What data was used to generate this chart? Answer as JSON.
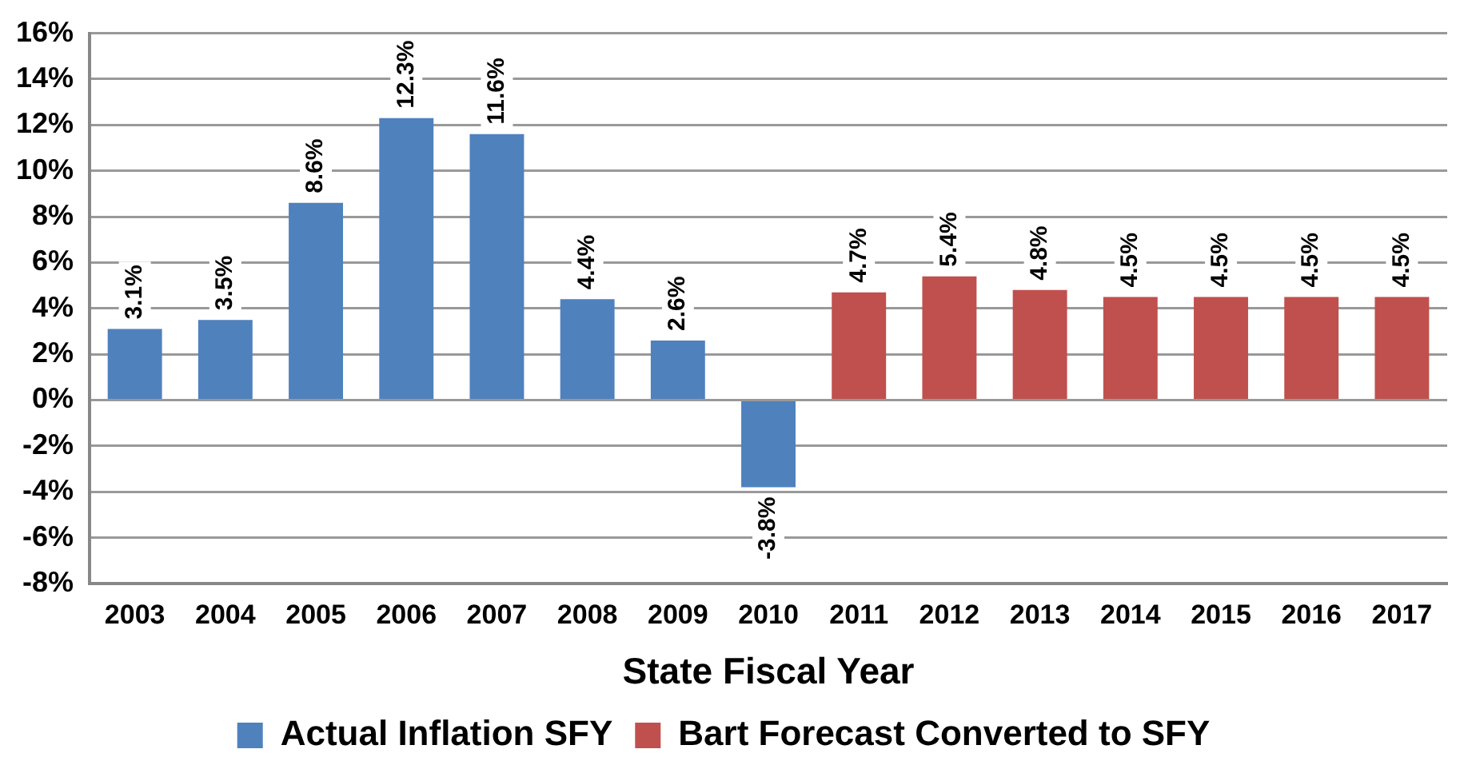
{
  "chart_data": {
    "type": "bar",
    "xlabel": "State Fiscal Year",
    "categories": [
      "2003",
      "2004",
      "2005",
      "2006",
      "2007",
      "2008",
      "2009",
      "2010",
      "2011",
      "2012",
      "2013",
      "2014",
      "2015",
      "2016",
      "2017"
    ],
    "series": [
      {
        "name": "Actual Inflation SFY",
        "color": "#4f81bd",
        "values": [
          3.1,
          3.5,
          8.6,
          12.3,
          11.6,
          4.4,
          2.6,
          -3.8,
          null,
          null,
          null,
          null,
          null,
          null,
          null
        ],
        "value_labels": [
          "3.1%",
          "3.5%",
          "8.6%",
          "12.3%",
          "11.6%",
          "4.4%",
          "2.6%",
          "-3.8%",
          null,
          null,
          null,
          null,
          null,
          null,
          null
        ]
      },
      {
        "name": "Bart Forecast Converted to SFY",
        "color": "#c0504d",
        "values": [
          null,
          null,
          null,
          null,
          null,
          null,
          null,
          null,
          4.7,
          5.4,
          4.8,
          4.5,
          4.5,
          4.5,
          4.5
        ],
        "value_labels": [
          null,
          null,
          null,
          null,
          null,
          null,
          null,
          null,
          "4.7%",
          "5.4%",
          "4.8%",
          "4.5%",
          "4.5%",
          "4.5%",
          "4.5%"
        ]
      }
    ],
    "ylim": [
      -8,
      16
    ],
    "yticks": [
      {
        "value": -8,
        "label": "-8%"
      },
      {
        "value": -6,
        "label": "-6%"
      },
      {
        "value": -4,
        "label": "-4%"
      },
      {
        "value": -2,
        "label": "-2%"
      },
      {
        "value": 0,
        "label": "0%"
      },
      {
        "value": 2,
        "label": "2%"
      },
      {
        "value": 4,
        "label": "4%"
      },
      {
        "value": 6,
        "label": "6%"
      },
      {
        "value": 8,
        "label": "8%"
      },
      {
        "value": 10,
        "label": "10%"
      },
      {
        "value": 12,
        "label": "12%"
      },
      {
        "value": 14,
        "label": "14%"
      },
      {
        "value": 16,
        "label": "16%"
      }
    ],
    "grid": "y",
    "legend": "bottom"
  }
}
